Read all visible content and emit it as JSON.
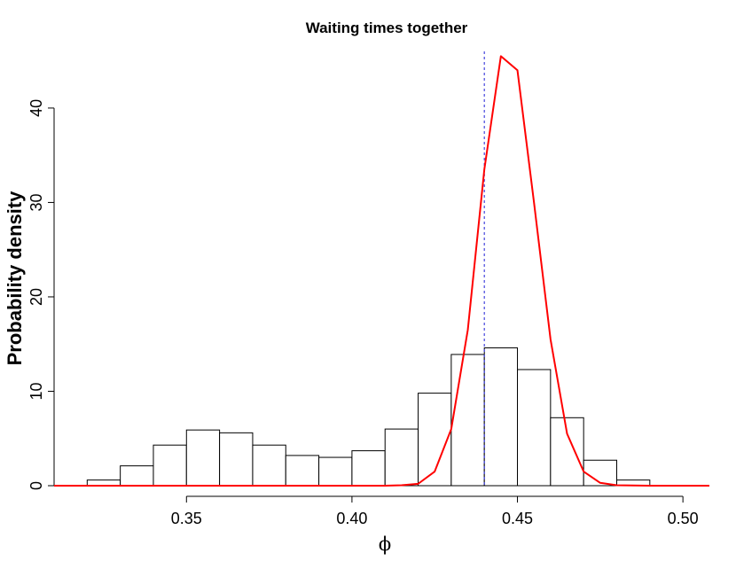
{
  "chart_data": {
    "type": "bar",
    "title": "Waiting times together",
    "xlabel": "ϕ",
    "ylabel": "Probability density",
    "xlim": [
      0.31,
      0.508
    ],
    "ylim": [
      0,
      46
    ],
    "x_ticks": [
      "0.35",
      "0.40",
      "0.45",
      "0.50"
    ],
    "y_ticks": [
      "0",
      "10",
      "20",
      "30",
      "40"
    ],
    "histogram": {
      "bin_width": 0.01,
      "bins": [
        {
          "x0": 0.32,
          "density": 0.6
        },
        {
          "x0": 0.33,
          "density": 2.1
        },
        {
          "x0": 0.34,
          "density": 4.3
        },
        {
          "x0": 0.35,
          "density": 5.9
        },
        {
          "x0": 0.36,
          "density": 5.6
        },
        {
          "x0": 0.37,
          "density": 4.3
        },
        {
          "x0": 0.38,
          "density": 3.2
        },
        {
          "x0": 0.39,
          "density": 3.0
        },
        {
          "x0": 0.4,
          "density": 3.7
        },
        {
          "x0": 0.41,
          "density": 6.0
        },
        {
          "x0": 0.42,
          "density": 9.8
        },
        {
          "x0": 0.43,
          "density": 13.9
        },
        {
          "x0": 0.44,
          "density": 14.6
        },
        {
          "x0": 0.45,
          "density": 12.3
        },
        {
          "x0": 0.46,
          "density": 7.2
        },
        {
          "x0": 0.47,
          "density": 2.7
        },
        {
          "x0": 0.48,
          "density": 0.6
        }
      ]
    },
    "density_curve": {
      "color": "#ff0000",
      "x": [
        0.31,
        0.4,
        0.41,
        0.415,
        0.42,
        0.425,
        0.43,
        0.435,
        0.44,
        0.445,
        0.45,
        0.455,
        0.46,
        0.465,
        0.47,
        0.475,
        0.48,
        0.49,
        0.5,
        0.508
      ],
      "y": [
        0,
        0,
        0,
        0.05,
        0.2,
        1.5,
        6.0,
        16.5,
        33.5,
        45.5,
        44.0,
        30.0,
        15.5,
        5.5,
        1.5,
        0.3,
        0.05,
        0,
        0,
        0
      ]
    },
    "reference_line": {
      "x": 0.44,
      "color": "#4444dd",
      "style": "dotted"
    },
    "grid": false,
    "legend": "none"
  }
}
